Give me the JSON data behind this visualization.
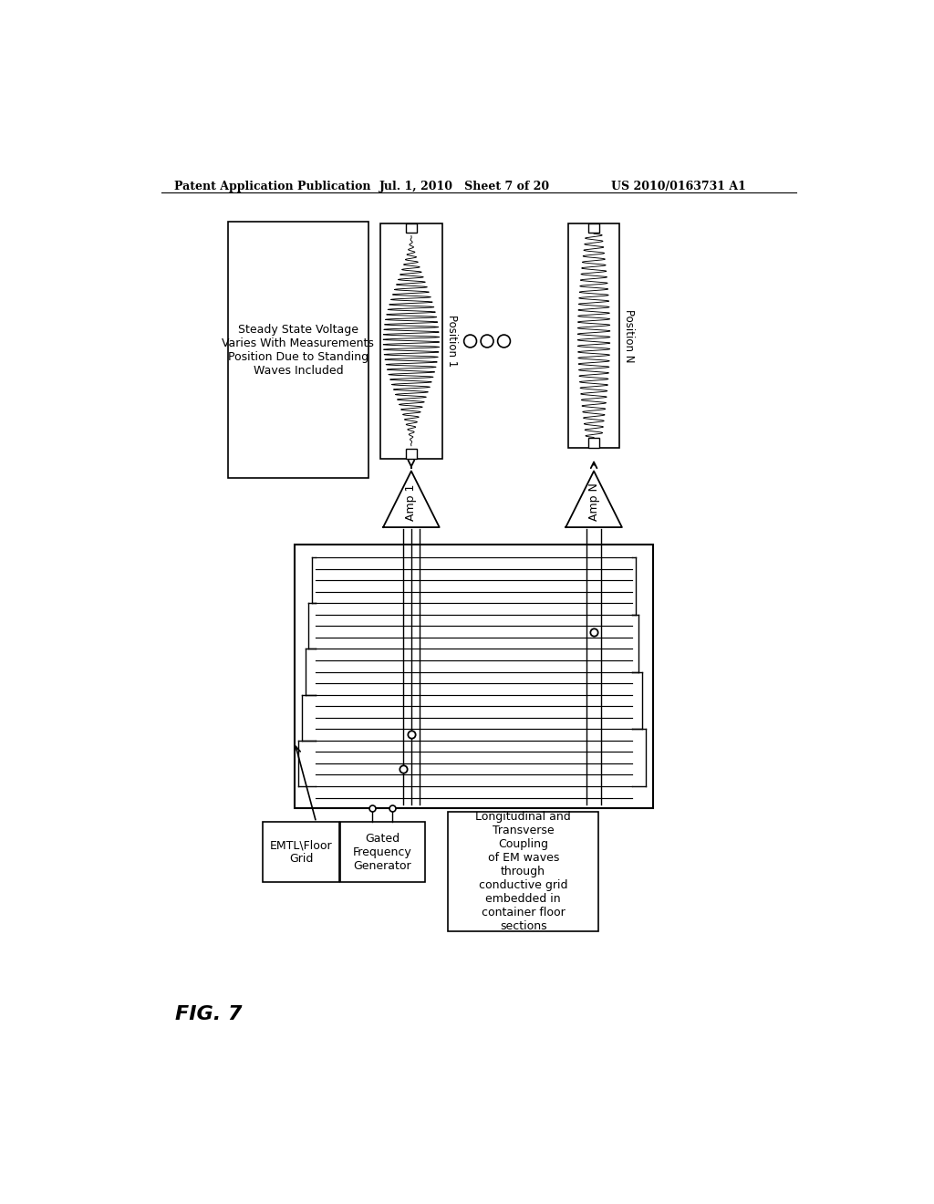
{
  "title_left": "Patent Application Publication",
  "title_mid": "Jul. 1, 2010   Sheet 7 of 20",
  "title_right": "US 2010/0163731 A1",
  "fig_label": "FIG. 7",
  "bg_color": "#ffffff",
  "text_color": "#000000",
  "steady_state_text": "Steady State Voltage\nVaries With Measurements\nPosition Due to Standing\nWaves Included",
  "pos1_label": "Position 1",
  "posN_label": "Position N",
  "amp1_label": "Amp 1",
  "ampN_label": "Amp N",
  "emtl_label": "EMTL\\Floor\nGrid",
  "gfg_label": "Gated\nFrequency\nGenerator",
  "coupling_label": "Longitudinal and\nTransverse\nCoupling\nof EM waves\nthrough\nconductive grid\nembedded in\ncontainer floor\nsections"
}
